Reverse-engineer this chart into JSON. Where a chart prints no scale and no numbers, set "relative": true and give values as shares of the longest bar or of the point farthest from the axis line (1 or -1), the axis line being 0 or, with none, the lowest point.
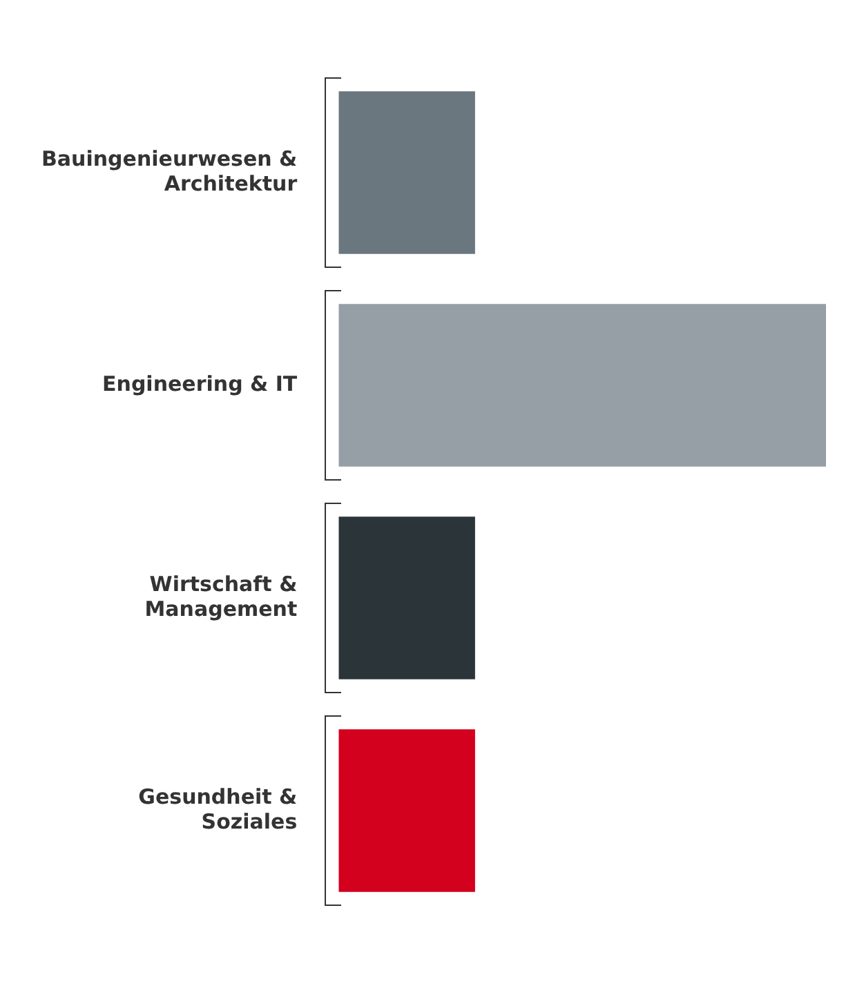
{
  "chart_data": {
    "type": "bar",
    "orientation": "horizontal",
    "relative": true,
    "categories": [
      "Bauingenieurwesen & Architektur",
      "Engineering & IT",
      "Wirtschaft & Management",
      "Gesundheit & Soziales"
    ],
    "values": [
      0.28,
      1,
      0.28,
      0.28
    ],
    "colors": [
      "#6b777e",
      "#959fa5",
      "#2b3438",
      "#d3001e"
    ],
    "legend": false
  }
}
